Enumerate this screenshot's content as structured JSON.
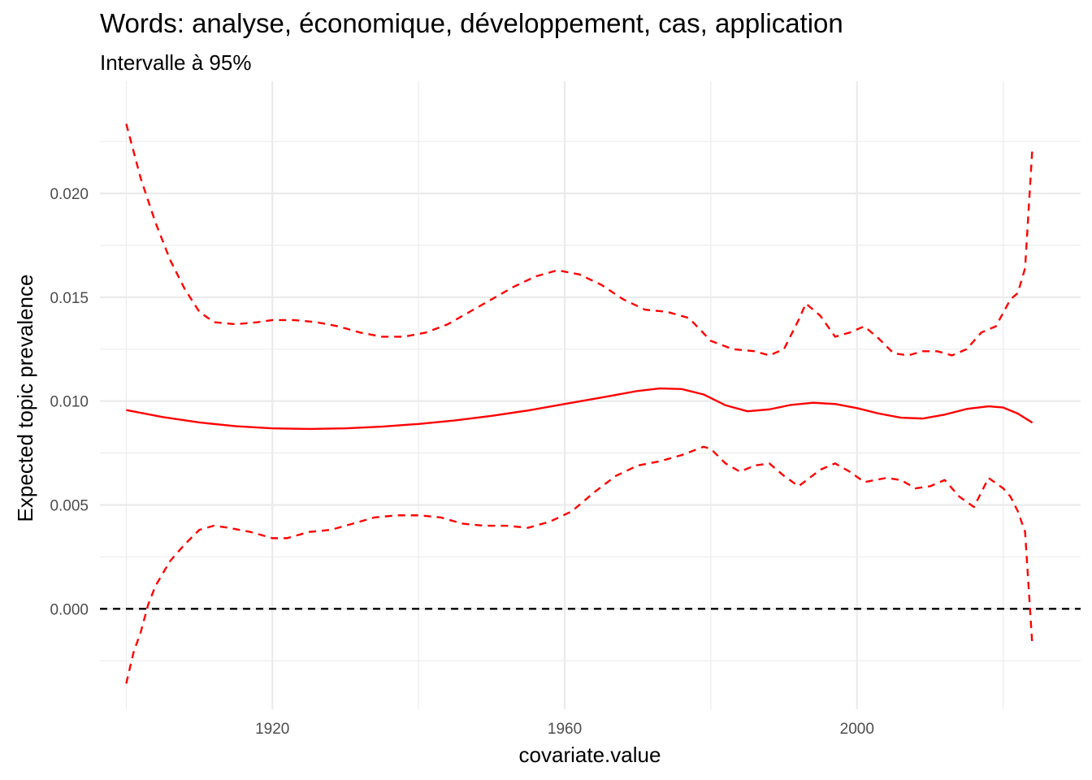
{
  "chart_data": {
    "type": "line",
    "title": "Words: analyse, économique, développement, cas, application",
    "subtitle": "Intervalle à 95%",
    "xlabel": "covariate.value",
    "ylabel": "Expected topic prevalence",
    "xlim": [
      1896.4,
      2030.6
    ],
    "ylim": [
      -0.00484,
      0.0254
    ],
    "x_ticks": [
      1920,
      1960,
      2000
    ],
    "x_tick_labels": [
      "1920",
      "1960",
      "2000"
    ],
    "y_ticks": [
      0.0,
      0.005,
      0.01,
      0.015,
      0.02
    ],
    "y_tick_labels": [
      "0.000",
      "0.005",
      "0.010",
      "0.015",
      "0.020"
    ],
    "x_minor_breaks": [
      1900,
      1940,
      1980,
      2020
    ],
    "y_minor_breaks": [
      -0.0025,
      0.0025,
      0.0075,
      0.0125,
      0.0175,
      0.0225
    ],
    "grid": true,
    "legend": "none",
    "reference_line": {
      "y": 0.0,
      "style": "dashed",
      "color": "#000000"
    },
    "series": [
      {
        "role": "estimate",
        "style": "solid",
        "color": "#ff0000",
        "x": [
          1900,
          1905,
          1910,
          1915,
          1920,
          1925,
          1930,
          1935,
          1940,
          1945,
          1950,
          1955,
          1960,
          1965,
          1970,
          1973,
          1976,
          1979,
          1982,
          1985,
          1988,
          1991,
          1994,
          1997,
          2000,
          2003,
          2006,
          2009,
          2012,
          2015,
          2018,
          2020,
          2022,
          2024
        ],
        "y": [
          0.00957,
          0.00923,
          0.00897,
          0.00879,
          0.00869,
          0.00866,
          0.00869,
          0.00877,
          0.0089,
          0.00907,
          0.00929,
          0.00955,
          0.00986,
          0.01017,
          0.01049,
          0.01061,
          0.01058,
          0.01032,
          0.0098,
          0.00951,
          0.0096,
          0.00982,
          0.00992,
          0.00986,
          0.00966,
          0.0094,
          0.0092,
          0.00916,
          0.00935,
          0.00962,
          0.00975,
          0.00969,
          0.0094,
          0.00896
        ]
      },
      {
        "role": "upper",
        "style": "dashed",
        "color": "#ff0000",
        "x": [
          1900,
          1902,
          1904,
          1906,
          1908,
          1910,
          1912,
          1915,
          1918,
          1920,
          1923,
          1926,
          1929,
          1932,
          1935,
          1938,
          1941,
          1944,
          1947,
          1950,
          1953,
          1956,
          1959,
          1962,
          1965,
          1968,
          1971,
          1974,
          1977,
          1980,
          1983,
          1986,
          1988,
          1990,
          1992,
          1993,
          1995,
          1997,
          1999,
          2001,
          2003,
          2005,
          2007,
          2009,
          2011,
          2013,
          2015,
          2017,
          2019,
          2021,
          2022,
          2023,
          2024
        ],
        "y": [
          0.02335,
          0.0207,
          0.0186,
          0.0168,
          0.0154,
          0.0143,
          0.0138,
          0.0137,
          0.0138,
          0.0139,
          0.0139,
          0.0138,
          0.0136,
          0.0133,
          0.0131,
          0.0131,
          0.0133,
          0.0137,
          0.0143,
          0.0149,
          0.0155,
          0.016,
          0.0163,
          0.0161,
          0.0156,
          0.0149,
          0.0144,
          0.0143,
          0.014,
          0.0129,
          0.0125,
          0.0124,
          0.0122,
          0.0125,
          0.0139,
          0.0147,
          0.0141,
          0.0131,
          0.0133,
          0.0136,
          0.013,
          0.0123,
          0.0122,
          0.0124,
          0.0124,
          0.0122,
          0.0125,
          0.0133,
          0.0136,
          0.0149,
          0.0152,
          0.0164,
          0.0222
        ]
      },
      {
        "role": "lower",
        "style": "dashed",
        "color": "#ff0000",
        "x": [
          1900,
          1901,
          1902,
          1903,
          1904,
          1906,
          1908,
          1910,
          1912,
          1914,
          1917,
          1920,
          1922,
          1925,
          1928,
          1931,
          1934,
          1937,
          1940,
          1943,
          1946,
          1949,
          1952,
          1955,
          1958,
          1961,
          1964,
          1967,
          1970,
          1973,
          1976,
          1979,
          1980,
          1982,
          1984,
          1986,
          1988,
          1990,
          1992,
          1995,
          1997,
          1999,
          2001,
          2004,
          2006,
          2008,
          2010,
          2012,
          2014,
          2016,
          2018,
          2020,
          2021,
          2022,
          2023,
          2024
        ],
        "y": [
          -0.0036,
          -0.0021,
          -0.0011,
          0.0002,
          0.0011,
          0.0023,
          0.0031,
          0.0038,
          0.004,
          0.0039,
          0.0037,
          0.0034,
          0.0034,
          0.0037,
          0.0038,
          0.0041,
          0.0044,
          0.0045,
          0.0045,
          0.0044,
          0.0041,
          0.004,
          0.004,
          0.0039,
          0.0042,
          0.0047,
          0.0056,
          0.0064,
          0.0069,
          0.0071,
          0.0074,
          0.0078,
          0.0077,
          0.007,
          0.0066,
          0.0069,
          0.007,
          0.0064,
          0.0059,
          0.0067,
          0.007,
          0.0066,
          0.0061,
          0.0063,
          0.0062,
          0.0058,
          0.0059,
          0.0062,
          0.0054,
          0.0049,
          0.0063,
          0.0058,
          0.0054,
          0.0047,
          0.0037,
          -0.0018
        ]
      }
    ]
  }
}
